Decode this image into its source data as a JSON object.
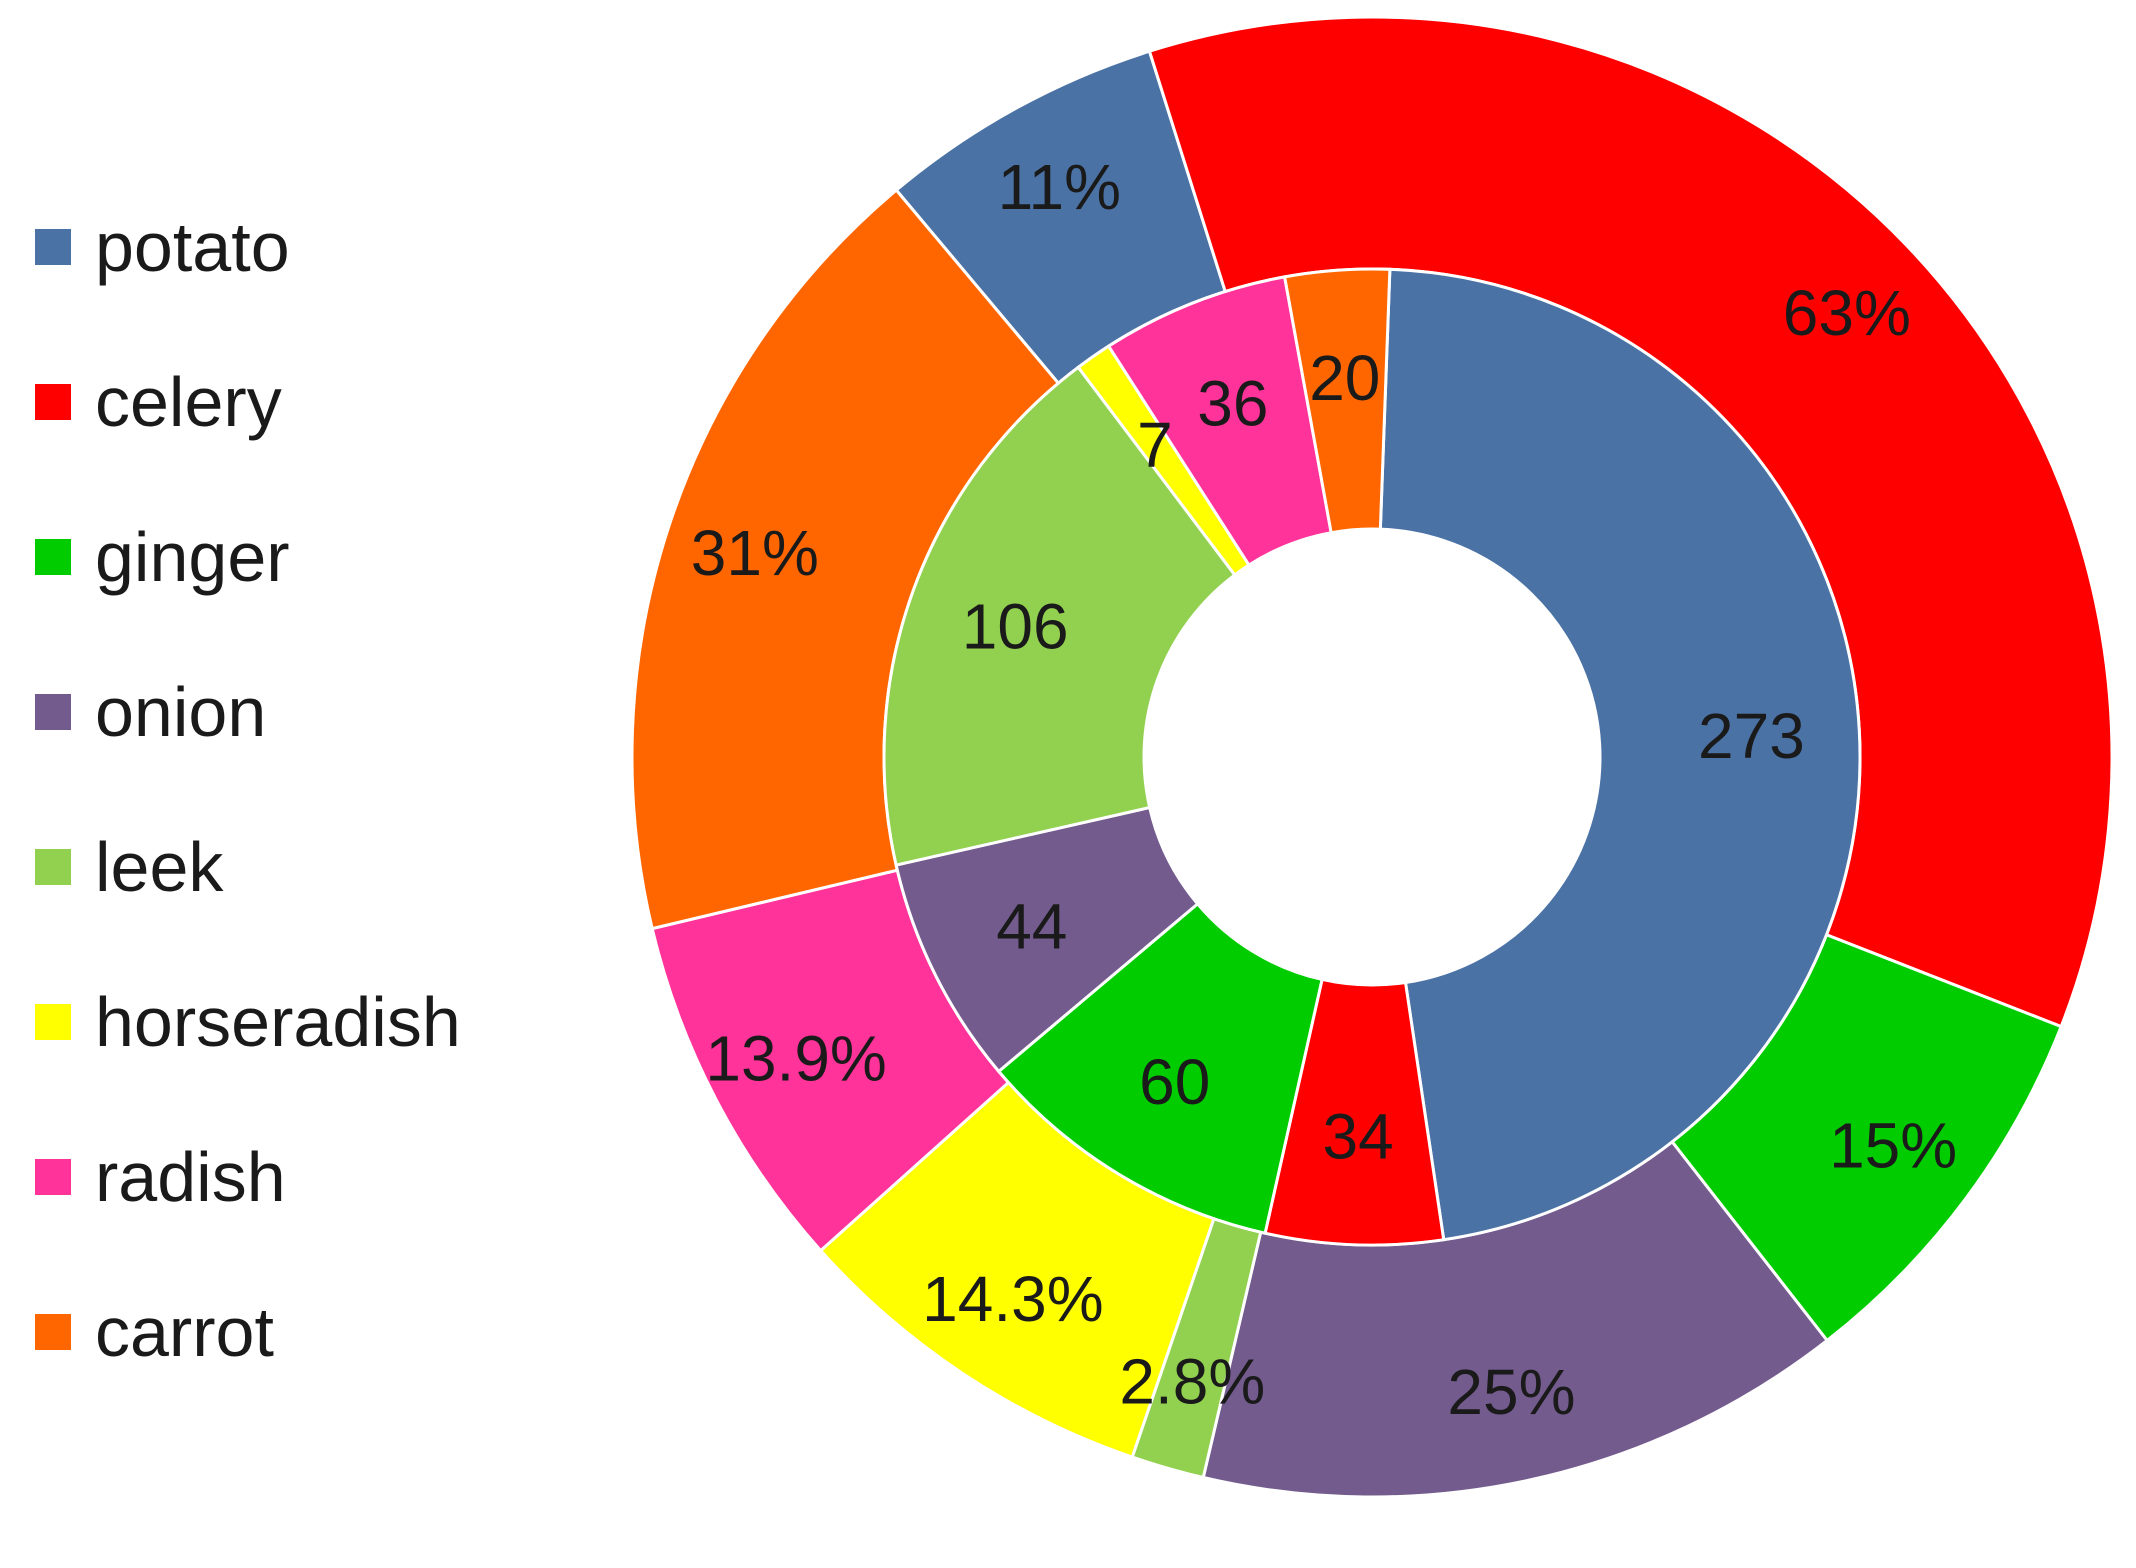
{
  "chart_data": {
    "type": "pie",
    "legend_position": "left",
    "legend": [
      {
        "name": "potato",
        "color": "#4A72A5"
      },
      {
        "name": "celery",
        "color": "#FF0000"
      },
      {
        "name": "ginger",
        "color": "#00CC00"
      },
      {
        "name": "onion",
        "color": "#735B8E"
      },
      {
        "name": "leek",
        "color": "#92D050"
      },
      {
        "name": "horseradish",
        "color": "#FFFF00"
      },
      {
        "name": "radish",
        "color": "#FF3399"
      },
      {
        "name": "carrot",
        "color": "#FF6600"
      }
    ],
    "series": [
      {
        "ring": "inner",
        "slices": [
          {
            "category": "potato",
            "value": 273,
            "label": "273"
          },
          {
            "category": "celery",
            "value": 34,
            "label": "34"
          },
          {
            "category": "ginger",
            "value": 60,
            "label": "60"
          },
          {
            "category": "onion",
            "value": 44,
            "label": "44"
          },
          {
            "category": "leek",
            "value": 106,
            "label": "106"
          },
          {
            "category": "horseradish",
            "value": 7,
            "label": "7"
          },
          {
            "category": "radish",
            "value": 36,
            "label": "36"
          },
          {
            "category": "carrot",
            "value": 20,
            "label": "20"
          }
        ]
      },
      {
        "ring": "outer",
        "slices": [
          {
            "category": "potato",
            "value": 11,
            "label": "11%"
          },
          {
            "category": "celery",
            "value": 63,
            "label": "63%"
          },
          {
            "category": "ginger",
            "value": 15,
            "label": "15%"
          },
          {
            "category": "onion",
            "value": 25,
            "label": "25%"
          },
          {
            "category": "leek",
            "value": 2.8,
            "label": "2.8%"
          },
          {
            "category": "horseradish",
            "value": 14.3,
            "label": "14.3%"
          },
          {
            "category": "radish",
            "value": 13.9,
            "label": "13.9%"
          },
          {
            "category": "carrot",
            "value": 31,
            "label": "31%"
          }
        ]
      }
    ]
  }
}
